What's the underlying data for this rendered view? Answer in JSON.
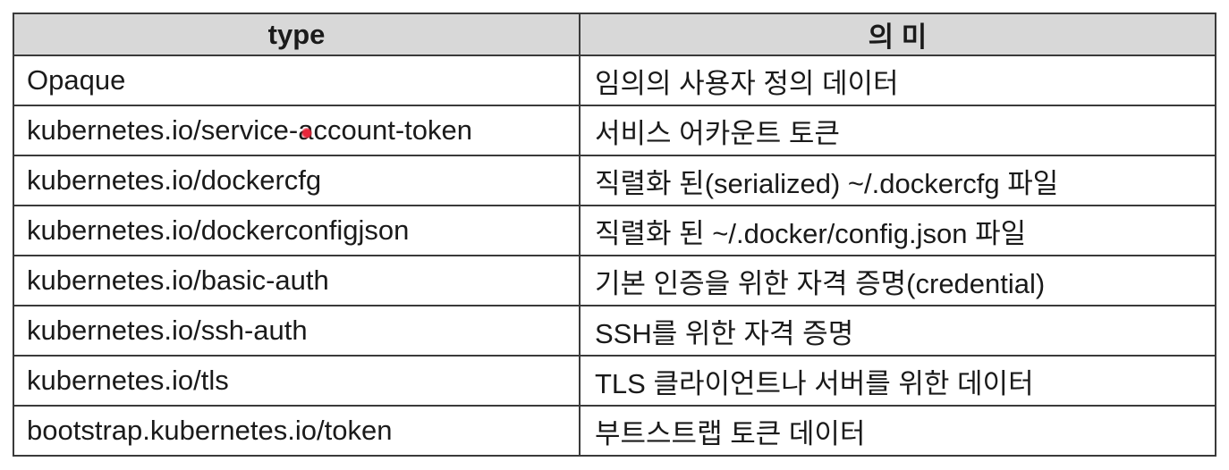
{
  "table": {
    "headers": {
      "type": "type",
      "meaning": "의 미"
    },
    "rows": [
      {
        "type": "Opaque",
        "meaning": "임의의 사용자 정의 데이터"
      },
      {
        "type": "kubernetes.io/service-account-token",
        "meaning": "서비스 어카운트 토큰"
      },
      {
        "type": "kubernetes.io/dockercfg",
        "meaning": "직렬화 된(serialized) ~/.dockercfg 파일"
      },
      {
        "type": "kubernetes.io/dockerconfigjson",
        "meaning": "직렬화 된 ~/.docker/config.json 파일"
      },
      {
        "type": "kubernetes.io/basic-auth",
        "meaning": "기본 인증을 위한 자격 증명(credential)"
      },
      {
        "type": "kubernetes.io/ssh-auth",
        "meaning": "SSH를 위한 자격 증명"
      },
      {
        "type": "kubernetes.io/tls",
        "meaning": "TLS 클라이언트나 서버를 위한 데이터"
      },
      {
        "type": "bootstrap.kubernetes.io/token",
        "meaning": "부트스트랩 토큰 데이터"
      }
    ]
  },
  "colors": {
    "header_bg": "#d8d8d8",
    "border": "#3a3a3a",
    "cursor": "#e8253a"
  }
}
